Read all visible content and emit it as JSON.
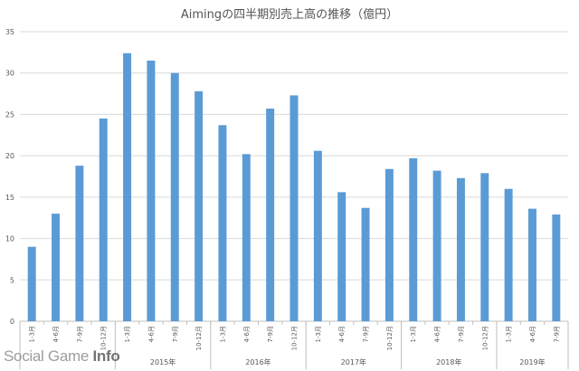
{
  "chart_data": {
    "type": "bar",
    "title": "Aimingの四半期別売上高の推移（億円）",
    "categories": [
      "1-3月",
      "4-6月",
      "7-9月",
      "10-12月",
      "1-3月",
      "4-6月",
      "7-9月",
      "10-12月",
      "1-3月",
      "4-6月",
      "7-9月",
      "10-12月",
      "1-3月",
      "4-6月",
      "7-9月",
      "10-12月",
      "1-3月",
      "4-6月",
      "7-9月",
      "10-12月",
      "1-3月",
      "4-6月",
      "7-9月"
    ],
    "groups": [
      {
        "label": "",
        "count": 4
      },
      {
        "label": "2015年",
        "count": 4
      },
      {
        "label": "2016年",
        "count": 4
      },
      {
        "label": "2017年",
        "count": 4
      },
      {
        "label": "2018年",
        "count": 4
      },
      {
        "label": "2019年",
        "count": 3
      }
    ],
    "values": [
      9.0,
      13.0,
      18.8,
      24.5,
      32.4,
      31.5,
      30.0,
      27.8,
      23.7,
      20.2,
      25.7,
      27.3,
      20.6,
      15.6,
      13.7,
      18.4,
      19.7,
      18.2,
      17.3,
      17.9,
      16.0,
      13.6,
      12.9
    ],
    "ylim": [
      0,
      35
    ],
    "yticks": [
      0,
      5,
      10,
      15,
      20,
      25,
      30,
      35
    ],
    "grid": true,
    "legend": "none",
    "bar_color": "#5b9bd5"
  },
  "watermark": {
    "part1": "Social Game ",
    "part2": "Info"
  }
}
